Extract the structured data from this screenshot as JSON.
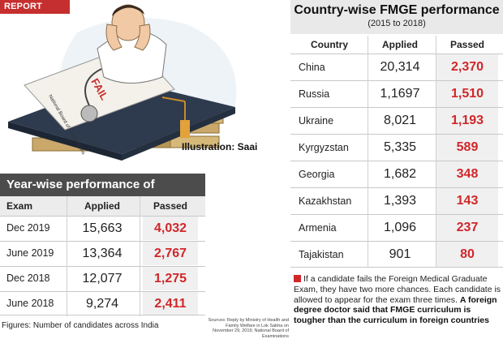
{
  "badge": "REPORT CARD",
  "illustration_credit": "Illustration: Saai",
  "year_wise": {
    "title": "Year-wise performance of medicos",
    "headers": [
      "Exam",
      "Applied",
      "Passed"
    ],
    "rows": [
      {
        "exam": "Dec 2019",
        "applied": "15,663",
        "passed": "4,032"
      },
      {
        "exam": "June 2019",
        "applied": "13,364",
        "passed": "2,767"
      },
      {
        "exam": "Dec 2018",
        "applied": "12,077",
        "passed": "1,275"
      },
      {
        "exam": "June 2018",
        "applied": "9,274",
        "passed": "2,411"
      }
    ],
    "footnote": "Figures: Number of candidates across India",
    "sources": "Sources: Reply by Ministry of Health and Family Welfare in Lok Sabha on November 29, 2019; National Board of Examinations"
  },
  "country_wise": {
    "title": "Country-wise FMGE performance",
    "subtitle": "(2015 to 2018)",
    "headers": [
      "Country",
      "Applied",
      "Passed"
    ],
    "rows": [
      {
        "country": "China",
        "applied": "20,314",
        "passed": "2,370"
      },
      {
        "country": "Russia",
        "applied": "1,1697",
        "passed": "1,510"
      },
      {
        "country": "Ukraine",
        "applied": "8,021",
        "passed": "1,193"
      },
      {
        "country": "Kyrgyzstan",
        "applied": "5,335",
        "passed": "589"
      },
      {
        "country": "Georgia",
        "applied": "1,682",
        "passed": "348"
      },
      {
        "country": "Kazakhstan",
        "applied": "1,393",
        "passed": "143"
      },
      {
        "country": "Armenia",
        "applied": "1,096",
        "passed": "237"
      },
      {
        "country": "Tajakistan",
        "applied": "901",
        "passed": "80"
      }
    ]
  },
  "note": {
    "text": "If a candidate fails the Foreign Medical Graduate Exam, they have two more chances. Each candidate is allowed to appear for the exam three times.",
    "bold": "A foreign degree doctor said that FMGE curriculum is tougher than the curriculum in foreign countries"
  },
  "illustration_text": {
    "fail": "FAIL",
    "board": "National Board of Examinations"
  },
  "colors": {
    "accent_red": "#d0272a",
    "header_dark": "#4c4c4c",
    "cap": "#2e3a4e"
  }
}
